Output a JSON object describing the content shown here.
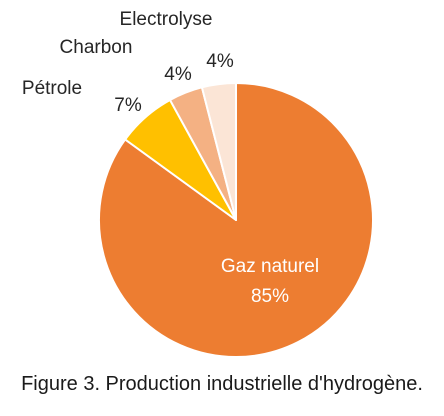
{
  "caption": "Figure 3. Production industrielle d'hydrogène.",
  "chart_data": {
    "type": "pie",
    "start": "12 o'clock",
    "direction": "clockwise",
    "slices": [
      {
        "label": "Gaz naturel",
        "value": 85,
        "display": "85%",
        "color": "#ED7D31",
        "label_position": "inside"
      },
      {
        "label": "Pétrole",
        "value": 7,
        "display": "7%",
        "color": "#FFC000",
        "label_position": "outside"
      },
      {
        "label": "Charbon",
        "value": 4,
        "display": "4%",
        "color": "#F4B183",
        "label_position": "outside"
      },
      {
        "label": "Electrolyse",
        "value": 4,
        "display": "4%",
        "color": "#FBE5D6",
        "label_position": "outside"
      }
    ]
  }
}
